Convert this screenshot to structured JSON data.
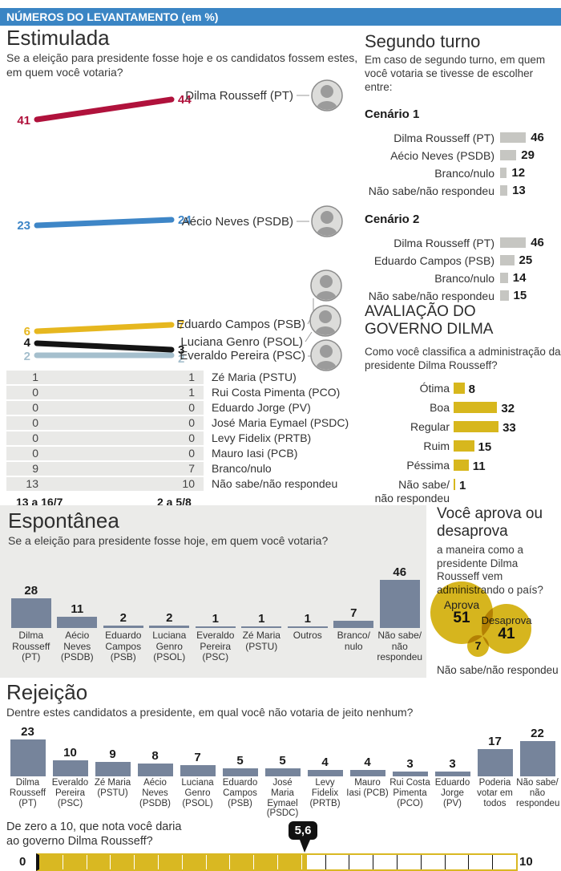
{
  "colors": {
    "header_bg": "#3a85c4",
    "dilma_red": "#b0123c",
    "aecio_blue": "#3e86c7",
    "campos_yellow": "#e6b71f",
    "genro_black": "#141414",
    "everaldo_gray": "#a5bfcd",
    "gray_bar": "#c6c6c2",
    "yellow_bar": "#d7b71d",
    "slate_bar": "#76849b",
    "panel_bg": "#ebebe9",
    "bubble_yellow": "#d6b51e"
  },
  "header": {
    "title": "NÚMEROS DO LEVANTAMENTO (em %)"
  },
  "estimulada": {
    "title": "Estimulada",
    "subtitle": "Se a eleição para presidente fosse hoje e os candidatos fossem estes, em quem você votaria?",
    "chart_data": {
      "type": "line",
      "x": [
        "13 a 16/7",
        "2 a 5/8"
      ],
      "series": [
        {
          "name": "Dilma Rousseff (PT)",
          "values": [
            41,
            44
          ],
          "color": "#b0123c"
        },
        {
          "name": "Aécio Neves (PSDB)",
          "values": [
            23,
            24
          ],
          "color": "#3e86c7"
        },
        {
          "name": "Eduardo Campos (PSB)",
          "values": [
            6,
            7
          ],
          "color": "#e6b71f"
        },
        {
          "name": "Luciana Genro (PSOL)",
          "values": [
            4,
            3
          ],
          "color": "#141414"
        },
        {
          "name": "Everaldo Pereira (PSC)",
          "values": [
            2,
            2
          ],
          "color": "#a5bfcd"
        }
      ]
    },
    "table": {
      "rows": [
        {
          "name": "Zé Maria (PSTU)",
          "v1": "1",
          "v2": "1"
        },
        {
          "name": "Rui Costa Pimenta (PCO)",
          "v1": "0",
          "v2": "1"
        },
        {
          "name": "Eduardo Jorge (PV)",
          "v1": "0",
          "v2": "0"
        },
        {
          "name": "José Maria Eymael (PSDC)",
          "v1": "0",
          "v2": "0"
        },
        {
          "name": "Levy Fidelix (PRTB)",
          "v1": "0",
          "v2": "0"
        },
        {
          "name": "Mauro Iasi (PCB)",
          "v1": "0",
          "v2": "0"
        },
        {
          "name": "Branco/nulo",
          "v1": "9",
          "v2": "7"
        },
        {
          "name": "Não sabe/não respondeu",
          "v1": "13",
          "v2": "10"
        }
      ]
    },
    "date_left": "13 a 16/7",
    "date_right": "2 a 5/8"
  },
  "segundo_turno": {
    "title": "Segundo turno",
    "subtitle": "Em caso de segundo turno, em quem você votaria se tivesse de escolher entre:",
    "scenarios": [
      {
        "title": "Cenário 1",
        "chart_data": {
          "type": "bar",
          "categories": [
            "Dilma Rousseff (PT)",
            "Aécio Neves (PSDB)",
            "Branco/nulo",
            "Não sabe/não respondeu"
          ],
          "values": [
            46,
            29,
            12,
            13
          ]
        }
      },
      {
        "title": "Cenário 2",
        "chart_data": {
          "type": "bar",
          "categories": [
            "Dilma Rousseff (PT)",
            "Eduardo Campos (PSB)",
            "Branco/nulo",
            "Não sabe/não respondeu"
          ],
          "values": [
            46,
            25,
            14,
            15
          ]
        }
      }
    ]
  },
  "avaliacao": {
    "title": "AVALIAÇÃO DO GOVERNO DILMA",
    "subtitle": "Como você classifica a administração da presidente Dilma Rousseff?",
    "chart_data": {
      "type": "bar",
      "categories": [
        "Ótima",
        "Boa",
        "Regular",
        "Ruim",
        "Péssima",
        "Não sabe/não respondeu"
      ],
      "values": [
        8,
        32,
        33,
        15,
        11,
        1
      ]
    }
  },
  "espontanea": {
    "title": "Espontânea",
    "subtitle": "Se a eleição para presidente fosse hoje, em quem você votaria?",
    "chart_data": {
      "type": "bar",
      "categories": [
        "Dilma Rousseff (PT)",
        "Aécio Neves (PSDB)",
        "Eduardo Campos (PSB)",
        "Luciana Genro (PSOL)",
        "Everaldo Pereira (PSC)",
        "Zé Maria (PSTU)",
        "Outros",
        "Branco/ nulo",
        "Não sabe/ não respondeu"
      ],
      "values": [
        28,
        11,
        2,
        2,
        1,
        1,
        1,
        7,
        46
      ]
    }
  },
  "aprovacao": {
    "title": "Você aprova ou desaprova",
    "subtitle": "a maneira como a presidente Dilma Rousseff vem administrando o país?",
    "footer": "Não sabe/não respondeu",
    "chart_data": {
      "type": "bubble",
      "items": [
        {
          "label": "Aprova",
          "value": 51
        },
        {
          "label": "Desaprova",
          "value": 41
        },
        {
          "label": "Não sabe/não respondeu",
          "value": 7
        }
      ]
    }
  },
  "rejeicao": {
    "title": "Rejeição",
    "subtitle": "Dentre estes candidatos a presidente, em qual você não votaria de jeito nenhum?",
    "chart_data": {
      "type": "bar",
      "categories": [
        "Dilma Rousseff (PT)",
        "Everaldo Pereira (PSC)",
        "Zé Maria (PSTU)",
        "Aécio Neves (PSDB)",
        "Luciana Genro (PSOL)",
        "Eduardo Campos (PSB)",
        "José Maria Eymael (PSDC)",
        "Levy Fidelix (PRTB)",
        "Mauro Iasi (PCB)",
        "Rui Costa Pimenta (PCO)",
        "Eduardo Jorge (PV)",
        "Poderia votar em todos",
        "Não sabe/ não respondeu"
      ],
      "values": [
        23,
        10,
        9,
        8,
        7,
        5,
        5,
        4,
        4,
        3,
        3,
        17,
        22
      ]
    }
  },
  "nota": {
    "question": "De zero a 10, que nota você daria ao governo Dilma Rousseff?",
    "chart_data": {
      "type": "scale",
      "min_label": "0",
      "max_label": "10",
      "min": 0,
      "max": 10,
      "value_label": "5,6",
      "value": 5.6,
      "segments": 20
    }
  }
}
